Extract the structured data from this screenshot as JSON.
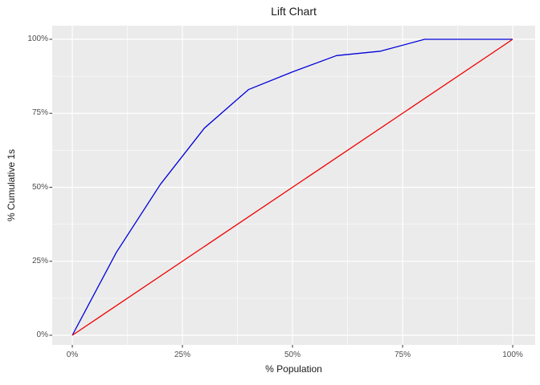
{
  "chart_data": {
    "type": "line",
    "title": "Lift Chart",
    "xlabel": "% Population",
    "ylabel": "% Cumulative 1s",
    "xlim": [
      0,
      100
    ],
    "ylim": [
      0,
      100
    ],
    "grid": true,
    "legend": "none",
    "panel_bg": "#EBEBEB",
    "grid_color": "#FFFFFF",
    "tick_color": "#333333",
    "tick_label_color": "#4d4d4d",
    "x_ticks": {
      "values": [
        0,
        25,
        50,
        75,
        100
      ],
      "labels": [
        "0%",
        "25%",
        "50%",
        "75%",
        "100%"
      ]
    },
    "y_ticks": {
      "values": [
        0,
        25,
        50,
        75,
        100
      ],
      "labels": [
        "0%",
        "25%",
        "50%",
        "75%",
        "100%"
      ]
    },
    "x_minor": [
      12.5,
      37.5,
      62.5,
      87.5
    ],
    "y_minor": [
      12.5,
      37.5,
      62.5,
      87.5
    ],
    "series": [
      {
        "name": "lift-curve",
        "color": "#0000DC",
        "x": [
          0,
          10,
          20,
          30,
          40,
          50,
          60,
          70,
          80,
          90,
          100
        ],
        "y": [
          0,
          28,
          51,
          70,
          83,
          89,
          94.5,
          96,
          100,
          100,
          100
        ]
      },
      {
        "name": "random-baseline",
        "color": "#EE0000",
        "x": [
          0,
          100
        ],
        "y": [
          0,
          100
        ]
      }
    ]
  }
}
